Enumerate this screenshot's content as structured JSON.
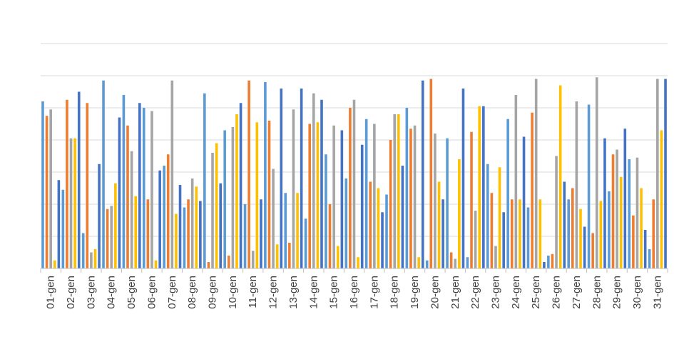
{
  "chart_data": {
    "type": "bar",
    "title": "",
    "xlabel": "",
    "ylabel": "",
    "ylim": [
      0,
      7
    ],
    "grid": true,
    "legend": "none",
    "categories": [
      "01-gen",
      "02-gen",
      "03-gen",
      "04-gen",
      "05-gen",
      "06-gen",
      "07-gen",
      "08-gen",
      "09-gen",
      "10-gen",
      "11-gen",
      "12-gen",
      "13-gen",
      "14-gen",
      "15-gen",
      "16-gen",
      "17-gen",
      "18-gen",
      "19-gen",
      "20-gen",
      "21-gen",
      "22-gen",
      "23-gen",
      "24-gen",
      "25-gen",
      "26-gen",
      "27-gen",
      "28-gen",
      "29-gen",
      "30-gen",
      "31-gen"
    ],
    "series": [
      {
        "color": "#5B9BD5",
        "values": [
          5.2,
          2.45,
          1.1,
          5.85,
          5.4,
          5.0,
          3.2,
          1.9,
          5.45,
          4.3,
          2.0,
          5.8,
          2.35,
          1.55,
          3.55,
          2.8,
          4.65,
          2.3,
          5.0,
          0.25,
          4.05,
          0.35,
          3.25,
          4.65,
          1.9,
          0.4,
          2.15,
          5.1,
          2.4,
          3.4,
          0.6
        ]
      },
      {
        "color": "#ED7D31",
        "values": [
          4.75,
          5.25,
          5.15,
          1.85,
          4.45,
          2.15,
          3.55,
          2.15,
          0.2,
          0.4,
          5.85,
          4.6,
          0.8,
          4.5,
          2.0,
          5.0,
          2.7,
          4.0,
          4.35,
          5.9,
          0.5,
          4.25,
          2.35,
          2.15,
          4.85,
          0.45,
          2.5,
          1.1,
          3.55,
          1.65,
          2.15
        ]
      },
      {
        "color": "#A5A5A5",
        "values": [
          4.95,
          4.05,
          0.5,
          1.95,
          3.65,
          4.9,
          5.85,
          2.8,
          3.6,
          4.4,
          0.55,
          3.1,
          4.95,
          5.45,
          4.45,
          5.25,
          4.5,
          4.8,
          4.45,
          4.2,
          0.3,
          1.8,
          0.7,
          5.4,
          5.9,
          3.5,
          5.2,
          5.95,
          3.7,
          3.45,
          5.9
        ]
      },
      {
        "color": "#FFC000",
        "values": [
          0.25,
          4.05,
          0.6,
          2.65,
          2.25,
          0.25,
          1.7,
          2.55,
          3.9,
          4.8,
          4.55,
          0.75,
          2.35,
          4.55,
          0.7,
          0.35,
          2.5,
          4.8,
          0.35,
          2.7,
          3.4,
          5.05,
          3.15,
          2.15,
          2.15,
          5.7,
          1.85,
          2.1,
          2.85,
          2.5,
          4.3
        ]
      },
      {
        "color": "#4472C4",
        "values": [
          2.75,
          5.5,
          3.25,
          4.7,
          5.15,
          3.05,
          2.6,
          2.1,
          2.65,
          5.15,
          2.15,
          5.6,
          5.6,
          5.25,
          4.3,
          3.85,
          1.75,
          3.2,
          5.85,
          2.15,
          5.6,
          5.05,
          1.75,
          4.1,
          0.2,
          2.7,
          1.3,
          4.05,
          4.35,
          1.2,
          5.9
        ]
      }
    ]
  }
}
